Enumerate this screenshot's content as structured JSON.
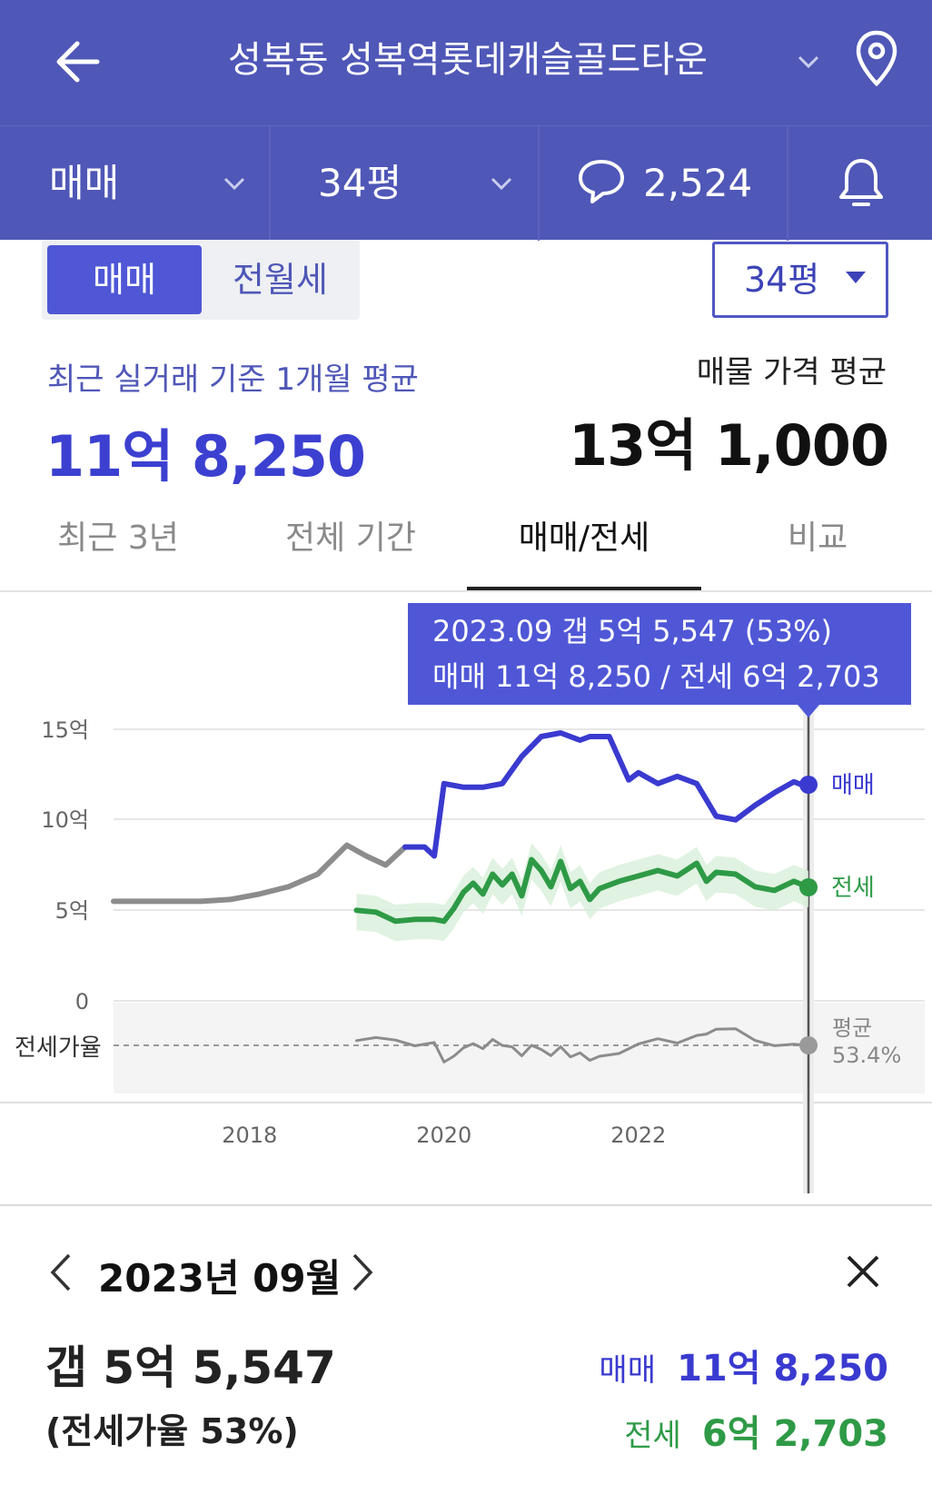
{
  "header": {
    "title": "성복동 성복역롯데캐슬골드타운"
  },
  "filters": {
    "trade_type": "매매",
    "size": "34평",
    "comment_count": "2,524"
  },
  "toggle": {
    "active": "매매",
    "inactive": "전월세"
  },
  "size_select": "34평",
  "summary": {
    "recent_label": "최근 실거래 기준 1개월 평균",
    "recent_value": "11억 8,250",
    "listing_label": "매물 가격 평균",
    "listing_value": "13억 1,000"
  },
  "tabs": [
    "최근 3년",
    "전체 기간",
    "매매/전세",
    "비교"
  ],
  "tooltip": {
    "line1": "2023.09  갭 5억 5,547 (53%)",
    "line2": "매매 11억 8,250 / 전세 6억 2,703"
  },
  "chart_data": {
    "type": "line",
    "y_ticks": [
      "15억",
      "10억",
      "5억",
      "0"
    ],
    "ratio_label": "전세가율",
    "x_ticks": [
      "2018",
      "2020",
      "2022"
    ],
    "series": [
      {
        "name": "매매",
        "color": "#3a3ad0",
        "x": [
          2016.6,
          2016.9,
          2017.2,
          2017.5,
          2017.8,
          2018.1,
          2018.4,
          2018.7,
          2019.0,
          2019.2,
          2019.4,
          2019.6,
          2019.8,
          2019.9,
          2020.0,
          2020.2,
          2020.4,
          2020.6,
          2020.8,
          2021.0,
          2021.2,
          2021.4,
          2021.5,
          2021.7,
          2021.9,
          2022.0,
          2022.2,
          2022.4,
          2022.6,
          2022.8,
          2023.0,
          2023.2,
          2023.4,
          2023.6,
          2023.75
        ],
        "values": [
          5.5,
          5.5,
          5.5,
          5.5,
          5.6,
          5.9,
          6.3,
          7.0,
          8.6,
          8.0,
          7.5,
          8.5,
          8.5,
          8.0,
          12.0,
          11.8,
          11.8,
          12.0,
          13.5,
          14.6,
          14.8,
          14.4,
          14.6,
          14.6,
          12.2,
          12.6,
          12.0,
          12.4,
          12.0,
          10.2,
          10.0,
          10.8,
          11.5,
          12.1,
          11.8
        ]
      },
      {
        "name": "전세",
        "color": "#2e9a46",
        "x": [
          2019.1,
          2019.3,
          2019.5,
          2019.7,
          2019.9,
          2020.0,
          2020.1,
          2020.2,
          2020.3,
          2020.4,
          2020.5,
          2020.6,
          2020.7,
          2020.8,
          2020.9,
          2021.0,
          2021.1,
          2021.2,
          2021.3,
          2021.4,
          2021.5,
          2021.6,
          2021.8,
          2022.0,
          2022.2,
          2022.4,
          2022.6,
          2022.7,
          2022.8,
          2023.0,
          2023.2,
          2023.4,
          2023.6,
          2023.75
        ],
        "values": [
          5.0,
          4.9,
          4.4,
          4.5,
          4.5,
          4.4,
          5.1,
          6.0,
          6.5,
          5.9,
          7.0,
          6.4,
          7.0,
          5.8,
          7.8,
          7.2,
          6.3,
          7.7,
          6.2,
          6.6,
          5.6,
          6.2,
          6.6,
          6.9,
          7.2,
          6.9,
          7.6,
          6.6,
          7.1,
          7.0,
          6.3,
          6.1,
          6.6,
          6.27
        ]
      }
    ],
    "ratio_average": "53.4%",
    "ratio_average_label": "평균",
    "selected": {
      "date": "2023.09",
      "sale": "11억 8,250",
      "jeonse": "6억 2,703",
      "gap": "5억 5,547",
      "ratio": "53%"
    },
    "legend": [
      "매매",
      "전세"
    ]
  },
  "detail": {
    "date": "2023년 09월",
    "gap": "갭 5억 5,547",
    "ratio": "(전세가율 53%)",
    "sale_label": "매매",
    "sale_value": "11억 8,250",
    "jeonse_label": "전세",
    "jeonse_value": "6억 2,703"
  },
  "colors": {
    "header_bg": "#4f57b7",
    "accent": "#4f57d6",
    "sale": "#3a3ad0",
    "jeonse": "#2e9a46",
    "history": "#8c8c8c"
  }
}
